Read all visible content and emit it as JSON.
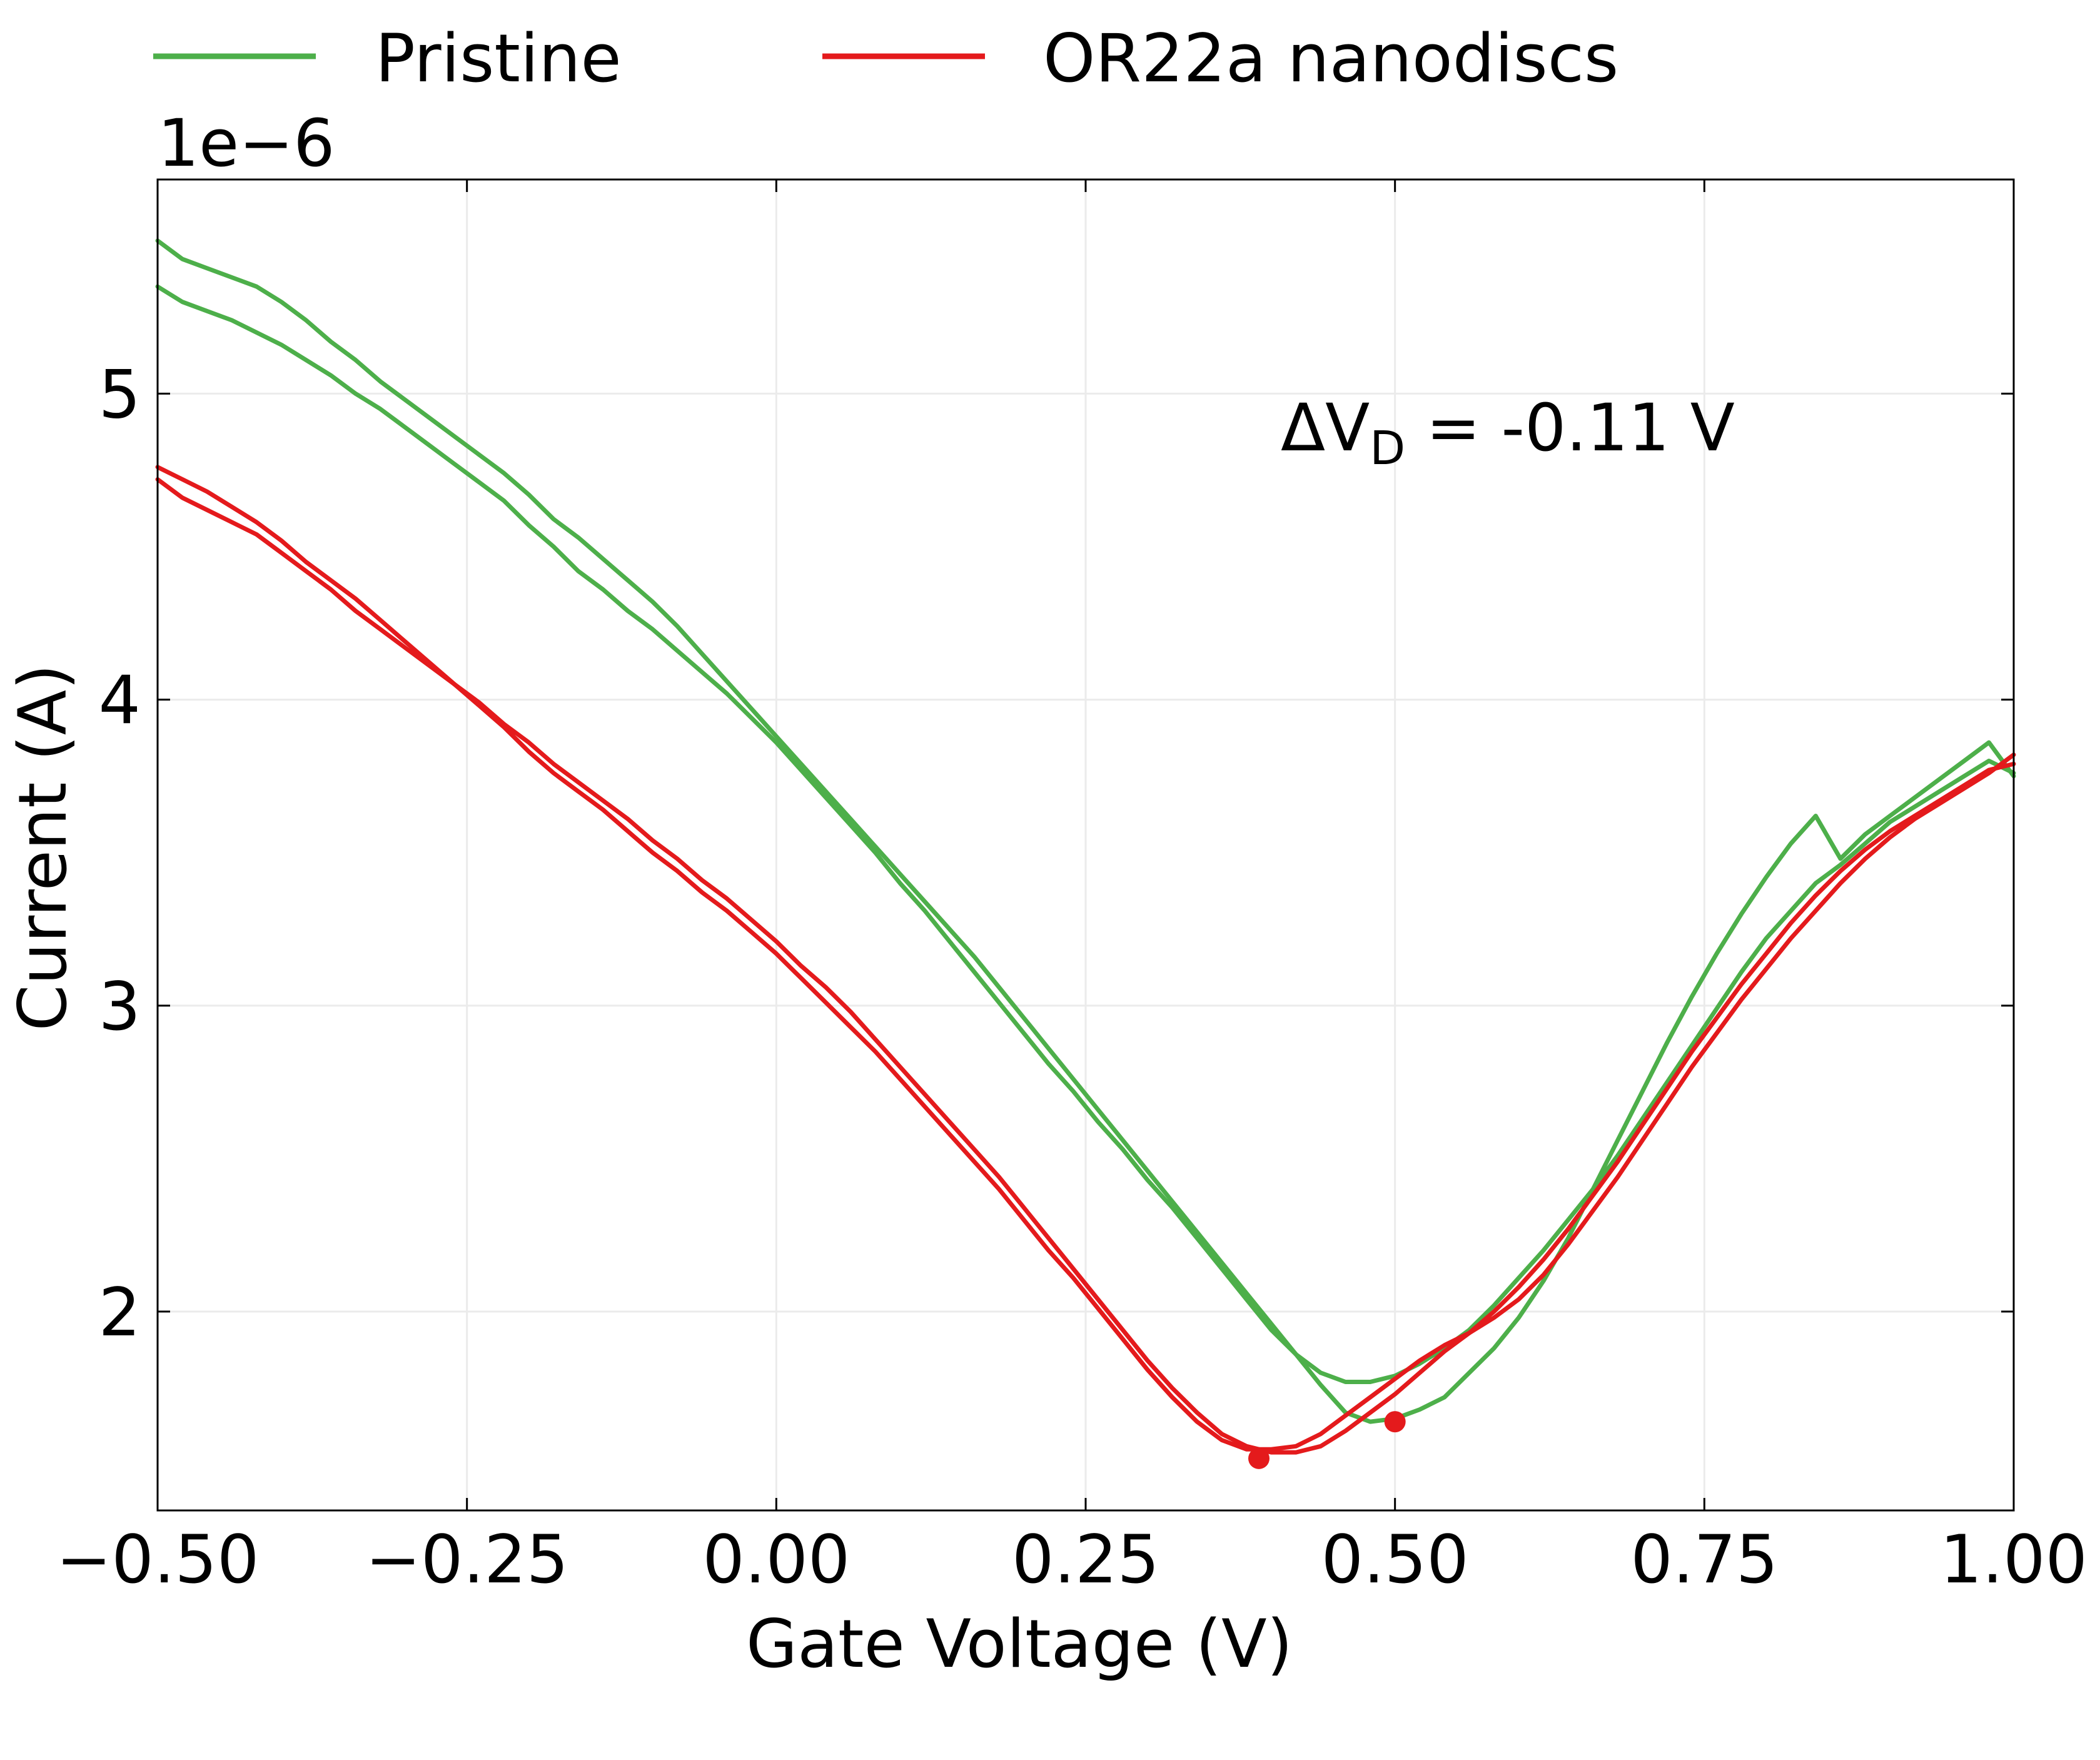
{
  "chart_data": {
    "type": "line",
    "title": "",
    "xlabel": "Gate Voltage (V)",
    "ylabel": "Current (A)",
    "y_offset_label": "1e−6",
    "y_scale_factor": 1e-06,
    "xlim": [
      -0.5,
      1.0
    ],
    "ylim": [
      1.35,
      5.7
    ],
    "x_ticks": [
      -0.5,
      -0.25,
      0.0,
      0.25,
      0.5,
      0.75,
      1.0
    ],
    "x_tick_labels": [
      "−0.50",
      "−0.25",
      "0.00",
      "0.25",
      "0.50",
      "0.75",
      "1.00"
    ],
    "y_ticks": [
      2,
      3,
      4,
      5
    ],
    "y_tick_labels": [
      "2",
      "3",
      "4",
      "5"
    ],
    "grid": true,
    "legend_position": "top, above plot",
    "annotation": {
      "prefix": "ΔV",
      "subscript": "D",
      "suffix": " = -0.11 V",
      "x": 0.41,
      "y": 4.88
    },
    "series": [
      {
        "name": "Pristine",
        "color": "#4daf4a",
        "traces": [
          {
            "x": [
              -0.5,
              -0.48,
              -0.46,
              -0.44,
              -0.42,
              -0.4,
              -0.38,
              -0.36,
              -0.34,
              -0.32,
              -0.3,
              -0.28,
              -0.26,
              -0.24,
              -0.22,
              -0.2,
              -0.18,
              -0.16,
              -0.14,
              -0.12,
              -0.1,
              -0.08,
              -0.06,
              -0.04,
              -0.02,
              0.0,
              0.02,
              0.04,
              0.06,
              0.08,
              0.1,
              0.12,
              0.14,
              0.16,
              0.18,
              0.2,
              0.22,
              0.24,
              0.26,
              0.28,
              0.3,
              0.32,
              0.34,
              0.36,
              0.38,
              0.4,
              0.42,
              0.44,
              0.46,
              0.48,
              0.5,
              0.52,
              0.54,
              0.56,
              0.58,
              0.6,
              0.62,
              0.64,
              0.66,
              0.68,
              0.7,
              0.72,
              0.74,
              0.76,
              0.78,
              0.8,
              0.82,
              0.84,
              0.86,
              0.88,
              0.9,
              0.92,
              0.94,
              0.96,
              0.98,
              1.0
            ],
            "y": [
              5.5,
              5.44,
              5.41,
              5.38,
              5.35,
              5.3,
              5.24,
              5.17,
              5.11,
              5.04,
              4.98,
              4.92,
              4.86,
              4.8,
              4.74,
              4.67,
              4.59,
              4.53,
              4.46,
              4.39,
              4.32,
              4.24,
              4.15,
              4.06,
              3.97,
              3.88,
              3.79,
              3.7,
              3.61,
              3.52,
              3.43,
              3.34,
              3.25,
              3.16,
              3.06,
              2.96,
              2.86,
              2.76,
              2.66,
              2.56,
              2.46,
              2.36,
              2.26,
              2.16,
              2.06,
              1.96,
              1.86,
              1.76,
              1.67,
              1.64,
              1.65,
              1.68,
              1.72,
              1.8,
              1.88,
              1.98,
              2.1,
              2.24,
              2.4,
              2.56,
              2.72,
              2.88,
              3.03,
              3.17,
              3.3,
              3.42,
              3.53,
              3.62,
              3.48,
              3.56,
              3.62,
              3.68,
              3.74,
              3.8,
              3.86,
              3.75
            ]
          },
          {
            "x": [
              -0.5,
              -0.48,
              -0.46,
              -0.44,
              -0.42,
              -0.4,
              -0.38,
              -0.36,
              -0.34,
              -0.32,
              -0.3,
              -0.28,
              -0.26,
              -0.24,
              -0.22,
              -0.2,
              -0.18,
              -0.16,
              -0.14,
              -0.12,
              -0.1,
              -0.08,
              -0.06,
              -0.04,
              -0.02,
              0.0,
              0.02,
              0.04,
              0.06,
              0.08,
              0.1,
              0.12,
              0.14,
              0.16,
              0.18,
              0.2,
              0.22,
              0.24,
              0.26,
              0.28,
              0.3,
              0.32,
              0.34,
              0.36,
              0.38,
              0.4,
              0.42,
              0.44,
              0.46,
              0.48,
              0.5,
              0.52,
              0.54,
              0.56,
              0.58,
              0.6,
              0.62,
              0.64,
              0.66,
              0.68,
              0.7,
              0.72,
              0.74,
              0.76,
              0.78,
              0.8,
              0.82,
              0.84,
              0.86,
              0.88,
              0.9,
              0.92,
              0.94,
              0.96,
              0.98,
              1.0
            ],
            "y": [
              5.35,
              5.3,
              5.27,
              5.24,
              5.2,
              5.16,
              5.11,
              5.06,
              5.0,
              4.95,
              4.89,
              4.83,
              4.77,
              4.71,
              4.65,
              4.57,
              4.5,
              4.42,
              4.36,
              4.29,
              4.23,
              4.16,
              4.09,
              4.02,
              3.94,
              3.86,
              3.77,
              3.68,
              3.59,
              3.5,
              3.4,
              3.31,
              3.21,
              3.11,
              3.01,
              2.91,
              2.81,
              2.72,
              2.62,
              2.53,
              2.43,
              2.34,
              2.24,
              2.14,
              2.04,
              1.94,
              1.86,
              1.8,
              1.77,
              1.77,
              1.79,
              1.83,
              1.88,
              1.94,
              2.02,
              2.11,
              2.2,
              2.3,
              2.4,
              2.51,
              2.63,
              2.75,
              2.87,
              2.99,
              3.11,
              3.22,
              3.31,
              3.4,
              3.46,
              3.53,
              3.6,
              3.65,
              3.7,
              3.75,
              3.8,
              3.76
            ]
          }
        ]
      },
      {
        "name": "OR22a nanodiscs",
        "color": "#e41a1c",
        "traces": [
          {
            "x": [
              -0.5,
              -0.48,
              -0.46,
              -0.44,
              -0.42,
              -0.4,
              -0.38,
              -0.36,
              -0.34,
              -0.32,
              -0.3,
              -0.28,
              -0.26,
              -0.24,
              -0.22,
              -0.2,
              -0.18,
              -0.16,
              -0.14,
              -0.12,
              -0.1,
              -0.08,
              -0.06,
              -0.04,
              -0.02,
              0.0,
              0.02,
              0.04,
              0.06,
              0.08,
              0.1,
              0.12,
              0.14,
              0.16,
              0.18,
              0.2,
              0.22,
              0.24,
              0.26,
              0.28,
              0.3,
              0.32,
              0.34,
              0.36,
              0.38,
              0.4,
              0.42,
              0.44,
              0.46,
              0.48,
              0.5,
              0.52,
              0.54,
              0.56,
              0.58,
              0.6,
              0.62,
              0.64,
              0.66,
              0.68,
              0.7,
              0.72,
              0.74,
              0.76,
              0.78,
              0.8,
              0.82,
              0.84,
              0.86,
              0.88,
              0.9,
              0.92,
              0.94,
              0.96,
              0.98,
              1.0
            ],
            "y": [
              4.72,
              4.66,
              4.62,
              4.58,
              4.54,
              4.48,
              4.42,
              4.36,
              4.29,
              4.23,
              4.17,
              4.11,
              4.05,
              3.98,
              3.91,
              3.83,
              3.76,
              3.7,
              3.64,
              3.57,
              3.5,
              3.44,
              3.37,
              3.31,
              3.24,
              3.17,
              3.09,
              3.01,
              2.93,
              2.85,
              2.76,
              2.67,
              2.58,
              2.49,
              2.4,
              2.3,
              2.2,
              2.11,
              2.01,
              1.91,
              1.81,
              1.72,
              1.64,
              1.58,
              1.55,
              1.55,
              1.56,
              1.6,
              1.66,
              1.72,
              1.78,
              1.84,
              1.89,
              1.93,
              1.98,
              2.04,
              2.12,
              2.22,
              2.33,
              2.44,
              2.56,
              2.68,
              2.8,
              2.91,
              3.02,
              3.12,
              3.22,
              3.31,
              3.4,
              3.48,
              3.55,
              3.61,
              3.66,
              3.71,
              3.76,
              3.82
            ]
          },
          {
            "x": [
              -0.5,
              -0.48,
              -0.46,
              -0.44,
              -0.42,
              -0.4,
              -0.38,
              -0.36,
              -0.34,
              -0.32,
              -0.3,
              -0.28,
              -0.26,
              -0.24,
              -0.22,
              -0.2,
              -0.18,
              -0.16,
              -0.14,
              -0.12,
              -0.1,
              -0.08,
              -0.06,
              -0.04,
              -0.02,
              0.0,
              0.02,
              0.04,
              0.06,
              0.08,
              0.1,
              0.12,
              0.14,
              0.16,
              0.18,
              0.2,
              0.22,
              0.24,
              0.26,
              0.28,
              0.3,
              0.32,
              0.34,
              0.36,
              0.38,
              0.4,
              0.42,
              0.44,
              0.46,
              0.48,
              0.5,
              0.52,
              0.54,
              0.56,
              0.58,
              0.6,
              0.62,
              0.64,
              0.66,
              0.68,
              0.7,
              0.72,
              0.74,
              0.76,
              0.78,
              0.8,
              0.82,
              0.84,
              0.86,
              0.88,
              0.9,
              0.92,
              0.94,
              0.96,
              0.98,
              1.0
            ],
            "y": [
              4.76,
              4.72,
              4.68,
              4.63,
              4.58,
              4.52,
              4.45,
              4.39,
              4.33,
              4.26,
              4.19,
              4.12,
              4.05,
              3.99,
              3.92,
              3.86,
              3.79,
              3.73,
              3.67,
              3.61,
              3.54,
              3.48,
              3.41,
              3.35,
              3.28,
              3.21,
              3.13,
              3.06,
              2.98,
              2.89,
              2.8,
              2.71,
              2.62,
              2.53,
              2.44,
              2.34,
              2.24,
              2.14,
              2.04,
              1.94,
              1.84,
              1.75,
              1.67,
              1.6,
              1.56,
              1.54,
              1.54,
              1.56,
              1.61,
              1.67,
              1.73,
              1.8,
              1.87,
              1.93,
              2.0,
              2.08,
              2.17,
              2.27,
              2.38,
              2.49,
              2.61,
              2.73,
              2.85,
              2.96,
              3.07,
              3.17,
              3.27,
              3.36,
              3.44,
              3.51,
              3.57,
              3.62,
              3.67,
              3.72,
              3.77,
              3.79
            ]
          }
        ]
      }
    ],
    "markers": [
      {
        "x": 0.39,
        "y": 1.52,
        "color": "#e41a1c"
      },
      {
        "x": 0.5,
        "y": 1.64,
        "color": "#e41a1c"
      }
    ]
  }
}
